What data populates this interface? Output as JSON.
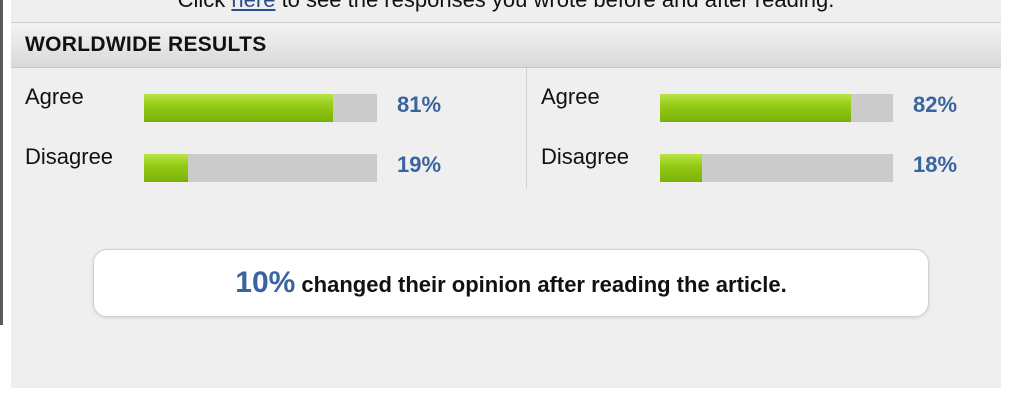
{
  "intro": {
    "prefix": "Click ",
    "link": "here",
    "suffix": " to see the responses you wrote before and after reading."
  },
  "header": {
    "title": "WORLDWIDE RESULTS"
  },
  "results": {
    "before": [
      {
        "label": "Agree",
        "percent_text": "81%",
        "value": 81
      },
      {
        "label": "Disagree",
        "percent_text": "19%",
        "value": 19
      }
    ],
    "after": [
      {
        "label": "Agree",
        "percent_text": "82%",
        "value": 82
      },
      {
        "label": "Disagree",
        "percent_text": "18%",
        "value": 18
      }
    ]
  },
  "summary": {
    "percent": "10%",
    "text": " changed their opinion after reading the article."
  },
  "colors": {
    "accent_blue": "#3a64a0",
    "bar_green": "#8cc510",
    "bar_track": "#cbcbcb"
  }
}
